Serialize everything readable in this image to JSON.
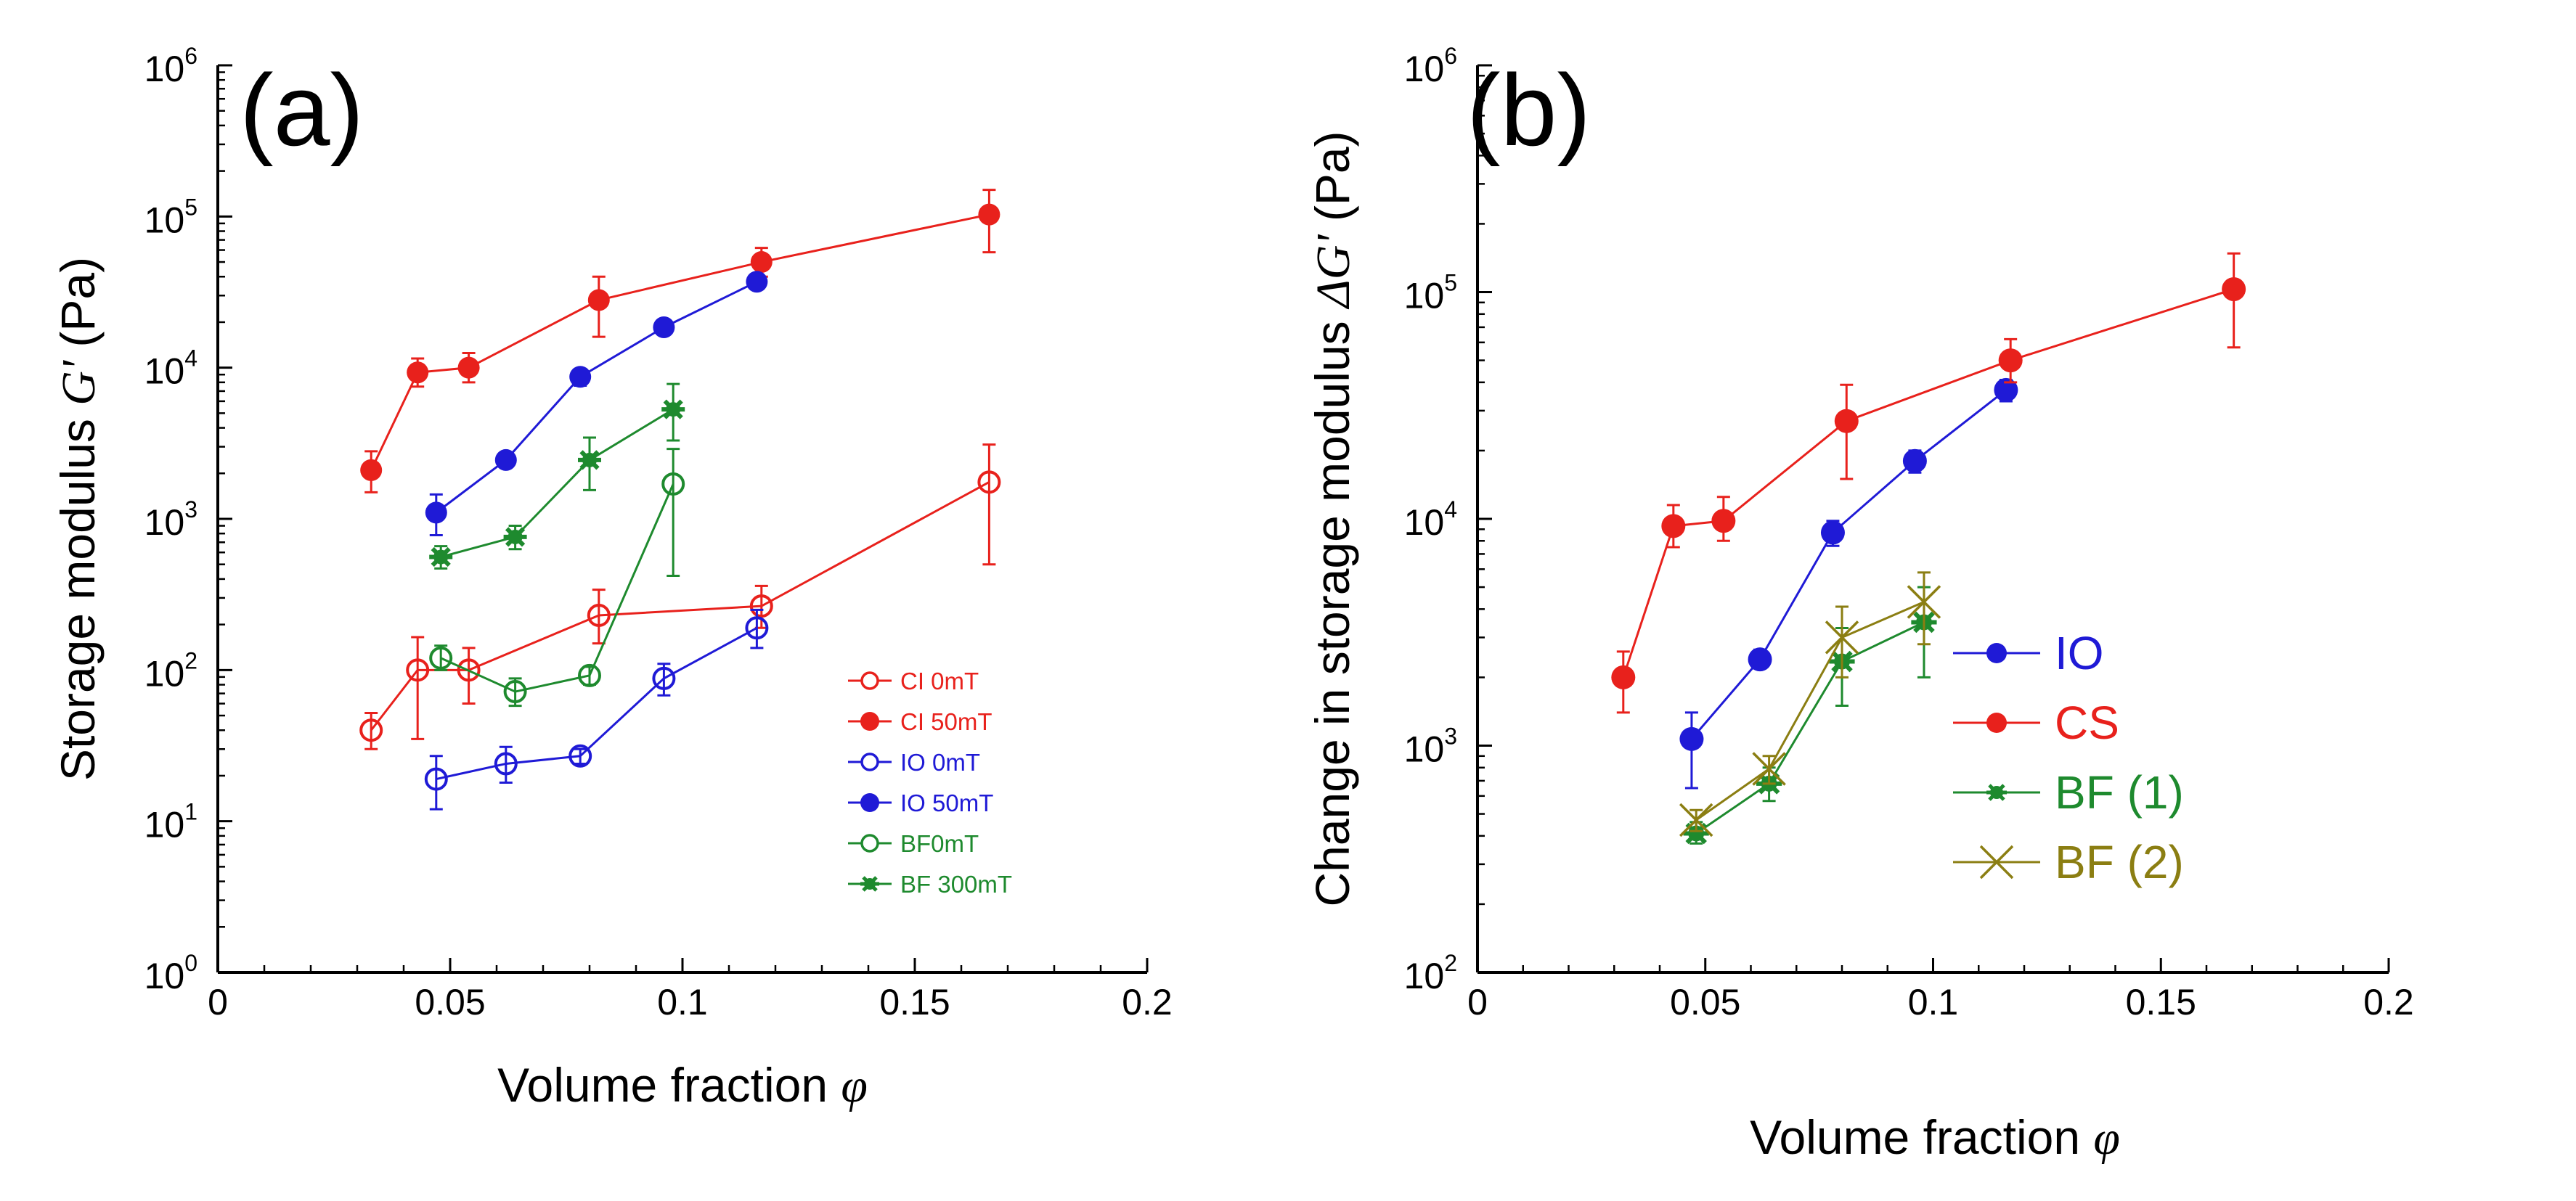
{
  "colors": {
    "red": "#e8211c",
    "blue": "#1f1ad6",
    "green": "#1e8a2e",
    "olive": "#8b7e12"
  },
  "chart_data": [
    {
      "type": "scatter",
      "panel_label": "(a)",
      "ylabel_prefix": "Storage modulus ",
      "ylabel_symbol": "G'",
      "ylabel_suffix": " (Pa)",
      "xlabel_prefix": "Volume fraction ",
      "xlabel_symbol": "φ",
      "xlim": [
        0,
        0.2
      ],
      "ylim": [
        1,
        1000000
      ],
      "yscale": "log",
      "x_ticks": [
        0,
        0.05,
        0.1,
        0.15,
        0.2
      ],
      "x_tick_labels": [
        "0",
        "0.05",
        "0.1",
        "0.15",
        "0.2"
      ],
      "y_ticks": [
        {
          "value": 1,
          "base": "10",
          "exp": "0"
        },
        {
          "value": 10,
          "base": "10",
          "exp": "1"
        },
        {
          "value": 100,
          "base": "10",
          "exp": "2"
        },
        {
          "value": 1000,
          "base": "10",
          "exp": "3"
        },
        {
          "value": 10000,
          "base": "10",
          "exp": "4"
        },
        {
          "value": 100000,
          "base": "10",
          "exp": "5"
        },
        {
          "value": 1000000,
          "base": "10",
          "exp": "6"
        }
      ],
      "legend_position": "bottom-right",
      "series": [
        {
          "name": "CI 0mT",
          "color": "#e8211c",
          "marker": "open-circle",
          "points": [
            {
              "x": 0.033,
              "y": 40,
              "lo": 30,
              "hi": 52
            },
            {
              "x": 0.043,
              "y": 100,
              "lo": 35,
              "hi": 165
            },
            {
              "x": 0.054,
              "y": 100,
              "lo": 60,
              "hi": 140
            },
            {
              "x": 0.082,
              "y": 230,
              "lo": 150,
              "hi": 340
            },
            {
              "x": 0.117,
              "y": 265,
              "lo": 190,
              "hi": 360
            },
            {
              "x": 0.166,
              "y": 1750,
              "lo": 500,
              "hi": 3100
            }
          ]
        },
        {
          "name": "CI 50mT",
          "color": "#e8211c",
          "marker": "filled-circle",
          "points": [
            {
              "x": 0.033,
              "y": 2100,
              "lo": 1500,
              "hi": 2800
            },
            {
              "x": 0.043,
              "y": 9300,
              "lo": 7500,
              "hi": 11500
            },
            {
              "x": 0.054,
              "y": 10000,
              "lo": 8000,
              "hi": 12500
            },
            {
              "x": 0.082,
              "y": 28000,
              "lo": 16000,
              "hi": 40000
            },
            {
              "x": 0.117,
              "y": 50000,
              "lo": 40000,
              "hi": 62000
            },
            {
              "x": 0.166,
              "y": 103000,
              "lo": 58000,
              "hi": 150000
            }
          ]
        },
        {
          "name": "IO 0mT",
          "color": "#1f1ad6",
          "marker": "open-circle",
          "points": [
            {
              "x": 0.047,
              "y": 19,
              "lo": 12,
              "hi": 27
            },
            {
              "x": 0.062,
              "y": 24,
              "lo": 18,
              "hi": 31
            },
            {
              "x": 0.078,
              "y": 27,
              "lo": 24,
              "hi": 30
            },
            {
              "x": 0.096,
              "y": 88,
              "lo": 68,
              "hi": 110
            },
            {
              "x": 0.116,
              "y": 190,
              "lo": 140,
              "hi": 250
            }
          ]
        },
        {
          "name": "IO 50mT",
          "color": "#1f1ad6",
          "marker": "filled-circle",
          "points": [
            {
              "x": 0.047,
              "y": 1100,
              "lo": 780,
              "hi": 1450
            },
            {
              "x": 0.062,
              "y": 2450,
              "lo": 2200,
              "hi": 2700
            },
            {
              "x": 0.078,
              "y": 8700,
              "lo": 7600,
              "hi": 9800
            },
            {
              "x": 0.096,
              "y": 18500,
              "lo": 16500,
              "hi": 20500
            },
            {
              "x": 0.116,
              "y": 37000,
              "lo": 33000,
              "hi": 41000
            }
          ]
        },
        {
          "name": "BF0mT",
          "color": "#1e8a2e",
          "marker": "open-circle",
          "points": [
            {
              "x": 0.048,
              "y": 120,
              "lo": 100,
              "hi": 145
            },
            {
              "x": 0.064,
              "y": 72,
              "lo": 58,
              "hi": 88
            },
            {
              "x": 0.08,
              "y": 92,
              "lo": 80,
              "hi": 105
            },
            {
              "x": 0.098,
              "y": 1700,
              "lo": 420,
              "hi": 2900
            }
          ]
        },
        {
          "name": "BF 300mT",
          "color": "#1e8a2e",
          "marker": "filled-star",
          "points": [
            {
              "x": 0.048,
              "y": 560,
              "lo": 470,
              "hi": 660
            },
            {
              "x": 0.064,
              "y": 760,
              "lo": 630,
              "hi": 900
            },
            {
              "x": 0.08,
              "y": 2450,
              "lo": 1550,
              "hi": 3450
            },
            {
              "x": 0.098,
              "y": 5300,
              "lo": 3300,
              "hi": 7800
            }
          ]
        }
      ]
    },
    {
      "type": "scatter",
      "panel_label": "(b)",
      "ylabel_prefix": "Change in storage modulus ",
      "ylabel_symbol": "ΔG'",
      "ylabel_suffix": " (Pa)",
      "xlabel_prefix": "Volume fraction ",
      "xlabel_symbol": "φ",
      "xlim": [
        0,
        0.2
      ],
      "ylim": [
        100,
        1000000
      ],
      "yscale": "log",
      "x_ticks": [
        0,
        0.05,
        0.1,
        0.15,
        0.2
      ],
      "x_tick_labels": [
        "0",
        "0.05",
        "0.1",
        "0.15",
        "0.2"
      ],
      "y_ticks": [
        {
          "value": 100,
          "base": "10",
          "exp": "2"
        },
        {
          "value": 1000,
          "base": "10",
          "exp": "3"
        },
        {
          "value": 10000,
          "base": "10",
          "exp": "4"
        },
        {
          "value": 100000,
          "base": "10",
          "exp": "5"
        },
        {
          "value": 1000000,
          "base": "10",
          "exp": "6"
        }
      ],
      "legend_position": "center-right",
      "series": [
        {
          "name": "IO",
          "color": "#1f1ad6",
          "marker": "filled-circle",
          "points": [
            {
              "x": 0.047,
              "y": 1070,
              "lo": 650,
              "hi": 1400
            },
            {
              "x": 0.062,
              "y": 2400,
              "lo": 2200,
              "hi": 2650
            },
            {
              "x": 0.078,
              "y": 8700,
              "lo": 7600,
              "hi": 9800
            },
            {
              "x": 0.096,
              "y": 18000,
              "lo": 16000,
              "hi": 20000
            },
            {
              "x": 0.116,
              "y": 37000,
              "lo": 33000,
              "hi": 41000
            }
          ]
        },
        {
          "name": "CS",
          "color": "#e8211c",
          "marker": "filled-circle",
          "points": [
            {
              "x": 0.032,
              "y": 2000,
              "lo": 1400,
              "hi": 2600
            },
            {
              "x": 0.043,
              "y": 9300,
              "lo": 7500,
              "hi": 11500
            },
            {
              "x": 0.054,
              "y": 9800,
              "lo": 8000,
              "hi": 12500
            },
            {
              "x": 0.081,
              "y": 27000,
              "lo": 15000,
              "hi": 39000
            },
            {
              "x": 0.117,
              "y": 50000,
              "lo": 40000,
              "hi": 62000
            },
            {
              "x": 0.166,
              "y": 103000,
              "lo": 57000,
              "hi": 148000
            }
          ]
        },
        {
          "name": "BF (1)",
          "color": "#1e8a2e",
          "marker": "filled-star",
          "points": [
            {
              "x": 0.048,
              "y": 410,
              "lo": 370,
              "hi": 460
            },
            {
              "x": 0.064,
              "y": 680,
              "lo": 570,
              "hi": 800
            },
            {
              "x": 0.08,
              "y": 2350,
              "lo": 1500,
              "hi": 3300
            },
            {
              "x": 0.098,
              "y": 3500,
              "lo": 2000,
              "hi": 5000
            }
          ]
        },
        {
          "name": "BF (2)",
          "color": "#8b7e12",
          "marker": "cross",
          "points": [
            {
              "x": 0.048,
              "y": 470,
              "lo": 420,
              "hi": 520
            },
            {
              "x": 0.064,
              "y": 790,
              "lo": 680,
              "hi": 900
            },
            {
              "x": 0.08,
              "y": 3000,
              "lo": 2000,
              "hi": 4100
            },
            {
              "x": 0.098,
              "y": 4300,
              "lo": 2800,
              "hi": 5800
            }
          ]
        }
      ]
    }
  ]
}
